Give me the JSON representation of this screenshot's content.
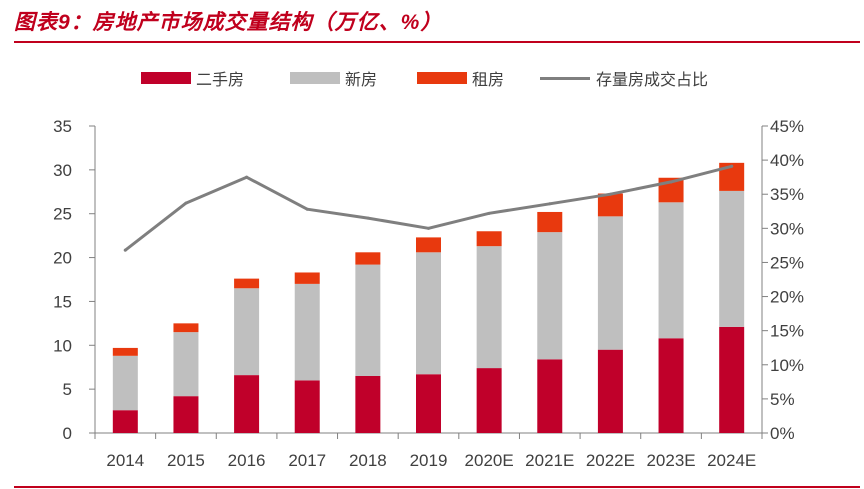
{
  "title": "图表9：房地产市场成交量结构（万亿、%）",
  "colors": {
    "title": "#c0001d",
    "rule": "#c0001d",
    "axis": "#808080",
    "text": "#404040"
  },
  "chart_data": {
    "type": "bar",
    "stacked": true,
    "legend_position": "top",
    "grid": false,
    "categories": [
      "2014",
      "2015",
      "2016",
      "2017",
      "2018",
      "2019",
      "2020E",
      "2021E",
      "2022E",
      "2023E",
      "2024E"
    ],
    "series": [
      {
        "name": "二手房",
        "color": "#c0002a",
        "axis": "left",
        "values": [
          2.6,
          4.2,
          6.6,
          6.0,
          6.5,
          6.7,
          7.4,
          8.4,
          9.5,
          10.8,
          12.1
        ]
      },
      {
        "name": "新房",
        "color": "#bfbfbf",
        "axis": "left",
        "values": [
          6.2,
          7.3,
          9.9,
          11.0,
          12.7,
          13.9,
          13.9,
          14.5,
          15.2,
          15.5,
          15.5
        ]
      },
      {
        "name": "租房",
        "color": "#e8390e",
        "axis": "left",
        "values": [
          0.9,
          1.0,
          1.1,
          1.3,
          1.4,
          1.7,
          1.7,
          2.3,
          2.6,
          2.8,
          3.2
        ]
      }
    ],
    "line_series": {
      "name": "存量房成交占比",
      "type": "line",
      "color": "#7f7f7f",
      "axis": "right",
      "unit": "%",
      "values": [
        26.8,
        33.7,
        37.5,
        32.8,
        31.5,
        30.0,
        32.2,
        33.6,
        35.0,
        36.8,
        39.1
      ]
    },
    "y_left": {
      "range": [
        0,
        35
      ],
      "ticks": [
        0,
        5,
        10,
        15,
        20,
        25,
        30,
        35
      ],
      "tick_labels": [
        "0",
        "5",
        "10",
        "15",
        "20",
        "25",
        "30",
        "35"
      ]
    },
    "y_right": {
      "range": [
        0,
        45
      ],
      "ticks": [
        0,
        5,
        10,
        15,
        20,
        25,
        30,
        35,
        40,
        45
      ],
      "tick_labels": [
        "0%",
        "5%",
        "10%",
        "15%",
        "20%",
        "25%",
        "30%",
        "35%",
        "40%",
        "45%"
      ]
    }
  }
}
